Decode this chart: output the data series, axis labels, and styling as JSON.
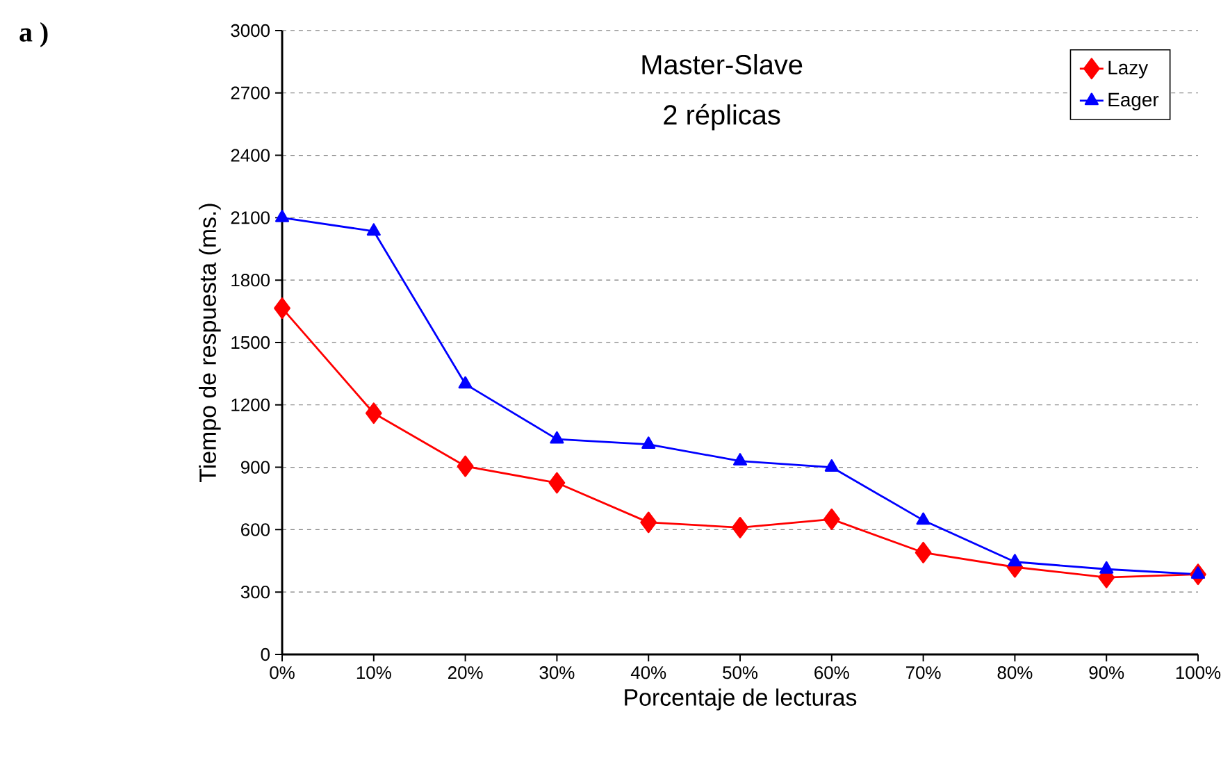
{
  "chart_data": {
    "type": "line",
    "title": "Master-Slave",
    "subtitle": "2 réplicas",
    "xlabel": "Porcentaje de lecturas",
    "ylabel": "Tiempo de respuesta (ms.)",
    "annotations": [
      "a )"
    ],
    "categories": [
      "0%",
      "10%",
      "20%",
      "30%",
      "40%",
      "50%",
      "60%",
      "70%",
      "80%",
      "90%",
      "100%"
    ],
    "series": [
      {
        "name": "Lazy",
        "color": "#ff0000",
        "marker": "diamond",
        "values": [
          1665,
          1160,
          905,
          825,
          635,
          610,
          650,
          490,
          420,
          370,
          385
        ]
      },
      {
        "name": "Eager",
        "color": "#0000ff",
        "marker": "triangle",
        "values": [
          2100,
          2035,
          1300,
          1035,
          1010,
          930,
          900,
          645,
          445,
          410,
          385
        ]
      }
    ],
    "ylim": [
      0,
      3000
    ],
    "yticks": [
      0,
      300,
      600,
      900,
      1200,
      1500,
      1800,
      2100,
      2400,
      2700,
      3000
    ],
    "grid": "y",
    "legend": "top right",
    "line_style": "solid"
  }
}
